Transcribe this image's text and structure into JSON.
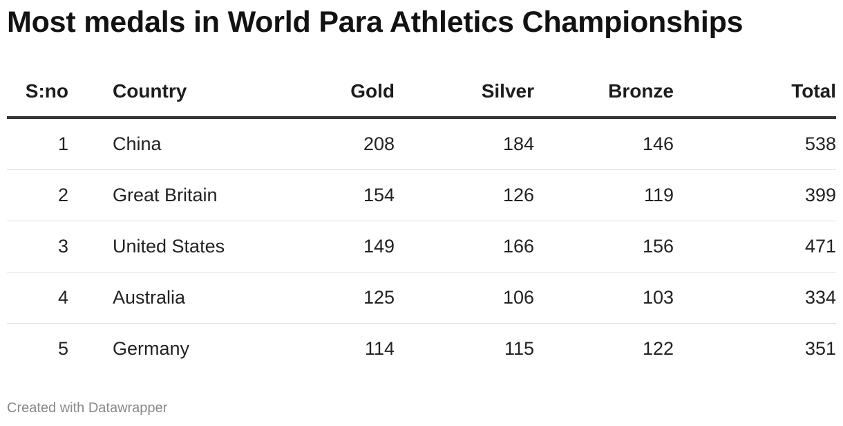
{
  "title": "Most medals in World Para Athletics Championships",
  "footer": "Created with Datawrapper",
  "chart_data": {
    "type": "table",
    "columns": [
      "S:no",
      "Country",
      "Gold",
      "Silver",
      "Bronze",
      "Total"
    ],
    "rows": [
      [
        "1",
        "China",
        "208",
        "184",
        "146",
        "538"
      ],
      [
        "2",
        "Great Britain",
        "154",
        "126",
        "119",
        "399"
      ],
      [
        "3",
        "United States",
        "149",
        "166",
        "156",
        "471"
      ],
      [
        "4",
        "Australia",
        "125",
        "106",
        "103",
        "334"
      ],
      [
        "5",
        "Germany",
        "114",
        "115",
        "122",
        "351"
      ]
    ]
  }
}
